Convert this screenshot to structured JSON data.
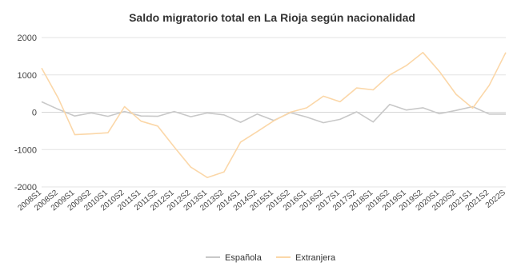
{
  "chart_data": {
    "type": "line",
    "title": "Saldo migratorio total en La Rioja según nacionalidad",
    "xlabel": "",
    "ylabel": "",
    "ylim": [
      -2000,
      2000
    ],
    "yticks": [
      -2000,
      -1000,
      0,
      1000,
      2000
    ],
    "ytick_labels": [
      "-2000",
      "-1000",
      "0",
      "1000",
      "2000"
    ],
    "grid": true,
    "legend_position": "bottom",
    "x": [
      "2008S1",
      "2008S2",
      "2009S1",
      "2009S2",
      "2010S1",
      "2010S2",
      "2011S1",
      "2011S2",
      "2012S1",
      "2012S2",
      "2013S1",
      "2013S2",
      "2014S1",
      "2014S2",
      "2015S1",
      "2015S2",
      "2016S1",
      "2016S2",
      "2017S1",
      "2017S2",
      "2018S1",
      "2018S2",
      "2019S1",
      "2019S2",
      "2020S1",
      "2020S2",
      "2021S1",
      "2021S2",
      "2022S1"
    ],
    "x_tick_labels": [
      "2008S1",
      "2008S2",
      "2009S1",
      "2009S2",
      "2010S1",
      "2010S2",
      "2011S1",
      "2011S2",
      "2012S1",
      "2012S2",
      "2013S1",
      "2013S2",
      "2014S1",
      "2014S2",
      "2015S1",
      "2015S2",
      "2016S1",
      "2016S2",
      "2017S1",
      "2017S2",
      "2018S1",
      "2018S2",
      "2019S1",
      "2019S2",
      "2020S1",
      "2020S2",
      "2021S1",
      "2021S2",
      "2022S"
    ],
    "series": [
      {
        "name": "Española",
        "color": "#c8c8c8",
        "values": [
          280,
          80,
          -100,
          -20,
          -110,
          20,
          -100,
          -110,
          20,
          -120,
          -20,
          -70,
          -270,
          -50,
          -220,
          -10,
          -130,
          -280,
          -190,
          10,
          -260,
          210,
          60,
          120,
          -40,
          50,
          150,
          -50,
          -50
        ]
      },
      {
        "name": "Extranjera",
        "color": "#fbd7a8",
        "values": [
          1180,
          380,
          -600,
          -580,
          -550,
          150,
          -240,
          -370,
          -930,
          -1470,
          -1750,
          -1600,
          -800,
          -520,
          -230,
          0,
          120,
          430,
          280,
          650,
          600,
          1000,
          1250,
          1600,
          1090,
          480,
          110,
          720,
          1600
        ]
      }
    ]
  }
}
